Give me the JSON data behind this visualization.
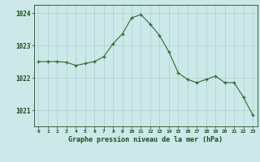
{
  "x": [
    0,
    1,
    2,
    3,
    4,
    5,
    6,
    7,
    8,
    9,
    10,
    11,
    12,
    13,
    14,
    15,
    16,
    17,
    18,
    19,
    20,
    21,
    22,
    23
  ],
  "y": [
    1022.5,
    1022.5,
    1022.5,
    1022.48,
    1022.38,
    1022.44,
    1022.5,
    1022.65,
    1023.05,
    1023.35,
    1023.85,
    1023.95,
    1023.65,
    1023.3,
    1022.8,
    1022.15,
    1021.95,
    1021.85,
    1021.95,
    1022.05,
    1021.85,
    1021.85,
    1021.4,
    1020.85
  ],
  "line_color": "#2d6a2d",
  "marker": "+",
  "marker_color": "#2d6a2d",
  "background_color": "#cce8e8",
  "grid_color": "#aad0d0",
  "xlabel": "Graphe pression niveau de la mer (hPa)",
  "xlabel_color": "#1a4d1a",
  "tick_color": "#1a4d1a",
  "ylim": [
    1020.5,
    1024.25
  ],
  "xlim": [
    -0.5,
    23.5
  ],
  "yticks": [
    1021,
    1022,
    1023,
    1024
  ],
  "xticks": [
    0,
    1,
    2,
    3,
    4,
    5,
    6,
    7,
    8,
    9,
    10,
    11,
    12,
    13,
    14,
    15,
    16,
    17,
    18,
    19,
    20,
    21,
    22,
    23
  ]
}
